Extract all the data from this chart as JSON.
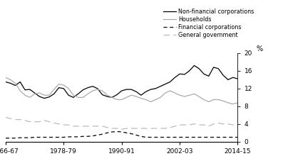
{
  "ylabel_right": "%",
  "ylim": [
    0,
    20
  ],
  "yticks": [
    0,
    4,
    8,
    12,
    16,
    20
  ],
  "xtick_labels": [
    "1966-67",
    "1978-79",
    "1990-91",
    "2002-03",
    "2014-15"
  ],
  "xtick_positions": [
    0,
    12,
    24,
    36,
    48
  ],
  "background_color": "#ffffff",
  "legend_entries": [
    "Non-financial corporations",
    "Households",
    "Financial corporations",
    "General government"
  ],
  "non_financial": [
    13.5,
    13.2,
    12.7,
    13.5,
    11.7,
    11.8,
    11.0,
    10.2,
    9.8,
    10.1,
    10.8,
    12.2,
    12.0,
    10.5,
    10.0,
    10.8,
    11.7,
    12.2,
    12.5,
    12.0,
    10.6,
    10.2,
    10.0,
    10.6,
    11.5,
    11.8,
    11.8,
    11.3,
    10.5,
    11.3,
    11.8,
    12.0,
    12.5,
    13.0,
    13.5,
    14.5,
    15.3,
    15.2,
    16.0,
    17.2,
    16.5,
    15.3,
    14.8,
    16.8,
    16.5,
    15.0,
    14.0,
    14.5,
    14.2
  ],
  "households": [
    14.5,
    14.0,
    13.2,
    11.5,
    10.5,
    10.0,
    10.8,
    11.0,
    10.5,
    10.5,
    11.8,
    13.0,
    12.8,
    12.0,
    10.5,
    10.0,
    10.0,
    10.8,
    11.5,
    11.8,
    11.5,
    10.5,
    10.0,
    9.5,
    9.5,
    10.0,
    10.5,
    10.2,
    9.8,
    9.5,
    9.0,
    9.5,
    10.0,
    11.0,
    11.5,
    11.0,
    10.5,
    10.2,
    10.5,
    10.8,
    10.2,
    9.5,
    9.0,
    9.5,
    9.5,
    9.2,
    8.8,
    8.5,
    8.8
  ],
  "financial": [
    0.8,
    0.8,
    0.8,
    0.9,
    0.9,
    0.9,
    1.0,
    1.0,
    1.0,
    1.0,
    1.0,
    1.0,
    1.0,
    1.1,
    1.1,
    1.1,
    1.2,
    1.2,
    1.3,
    1.5,
    1.7,
    2.0,
    2.2,
    2.3,
    2.2,
    2.0,
    1.8,
    1.5,
    1.2,
    1.0,
    1.0,
    1.0,
    1.0,
    1.0,
    1.0,
    1.0,
    1.0,
    1.0,
    1.0,
    1.0,
    1.0,
    1.0,
    1.0,
    1.0,
    1.0,
    1.0,
    1.0,
    1.0,
    1.0
  ],
  "general_govt": [
    5.5,
    5.2,
    5.0,
    5.0,
    4.8,
    4.5,
    4.5,
    4.5,
    4.8,
    4.5,
    4.2,
    4.0,
    3.8,
    3.8,
    3.5,
    3.5,
    3.5,
    3.5,
    3.5,
    3.5,
    3.5,
    3.2,
    3.0,
    3.0,
    2.8,
    3.0,
    3.0,
    3.0,
    3.0,
    3.0,
    3.0,
    3.0,
    3.0,
    3.0,
    3.2,
    3.5,
    3.8,
    3.8,
    3.8,
    4.0,
    3.8,
    3.8,
    3.5,
    4.0,
    4.2,
    4.0,
    4.0,
    3.8,
    3.8
  ],
  "nfc_color": "#000000",
  "hh_color": "#aaaaaa",
  "fin_color": "#000000",
  "govt_color": "#bbbbbb"
}
